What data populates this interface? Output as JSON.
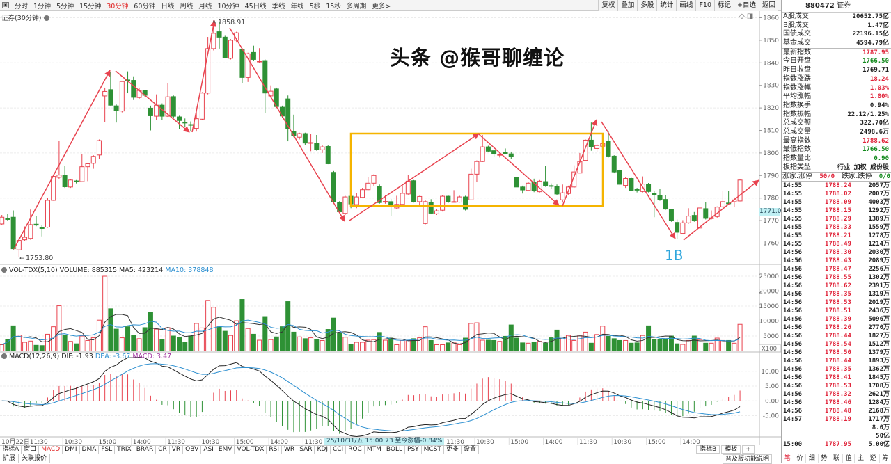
{
  "toolbar": {
    "items": [
      "分时",
      "1分钟",
      "5分钟",
      "15分钟",
      "30分钟",
      "60分钟",
      "日线",
      "周线",
      "月线",
      "10分钟",
      "45日线",
      "季线",
      "年线",
      "5秒",
      "15秒",
      "多周期",
      "更多>"
    ],
    "active": "30分钟",
    "right_buttons": [
      "复权",
      "叠加",
      "多股",
      "统计",
      "画线",
      "F10",
      "标记",
      "+自选",
      "返回"
    ]
  },
  "chart": {
    "title": "证券(30分钟)",
    "price_ticks": [
      1860,
      1850,
      1840,
      1830,
      1820,
      1810,
      1800,
      1790,
      1780,
      1770,
      1760
    ],
    "high_label": "1858.91",
    "low_label": "1753.80",
    "current_price_label": "1771.0",
    "annotation_1b": "1B",
    "colors": {
      "up": "#e8434f",
      "down": "#2e9135",
      "box": "#f5b400",
      "arrow": "#e8434f"
    },
    "candles": [
      [
        1768.5,
        1771.5,
        1772.5,
        1768
      ],
      [
        1771,
        1770.5,
        1773,
        1770
      ],
      [
        1771.5,
        1757.5,
        1774.5,
        1757
      ],
      [
        1757,
        1761.2,
        1762.3,
        1753.8
      ],
      [
        1761.5,
        1762.6,
        1767.4,
        1761
      ],
      [
        1762.1,
        1768.2,
        1774.9,
        1761.5
      ],
      [
        1768.4,
        1768.0,
        1772,
        1767.5
      ],
      [
        1766.8,
        1766.5,
        1768,
        1763
      ],
      [
        1767.1,
        1779,
        1780,
        1766.8
      ],
      [
        1779,
        1789.6,
        1790.5,
        1778.8
      ],
      [
        1789.2,
        1790.2,
        1805.5,
        1788.5
      ],
      [
        1790.2,
        1785,
        1794.4,
        1784.5
      ],
      [
        1784.9,
        1788,
        1788.5,
        1784.5
      ],
      [
        1787.6,
        1787.2,
        1788,
        1786.5
      ],
      [
        1787.3,
        1793.9,
        1799.6,
        1787
      ],
      [
        1793.9,
        1795.2,
        1795.5,
        1787.5
      ],
      [
        1795.4,
        1798.5,
        1799,
        1793
      ],
      [
        1799.1,
        1805.5,
        1806,
        1797.5
      ],
      [
        1825.3,
        1827.3,
        1829,
        1813.7
      ],
      [
        1828.1,
        1821.2,
        1836,
        1821
      ],
      [
        1820.9,
        1818.9,
        1821.5,
        1813.5
      ],
      [
        1818.6,
        1831.7,
        1832,
        1818
      ],
      [
        1832.4,
        1832.0,
        1836.2,
        1826.5
      ],
      [
        1832.2,
        1824.7,
        1834,
        1823.5
      ],
      [
        1824.6,
        1827.7,
        1829,
        1824
      ],
      [
        1827.7,
        1825.6,
        1828,
        1825
      ],
      [
        1819.9,
        1816.5,
        1821,
        1810
      ],
      [
        1816.3,
        1821.2,
        1826,
        1814.5
      ],
      [
        1821.2,
        1816.3,
        1822,
        1814.5
      ],
      [
        1816.3,
        1824.9,
        1831,
        1816
      ],
      [
        1825,
        1816.3,
        1825.5,
        1815.5
      ],
      [
        1816,
        1814.4,
        1816.5,
        1810.5
      ],
      [
        1813.6,
        1813.3,
        1815.3,
        1811.5
      ],
      [
        1812.6,
        1812.4,
        1814,
        1809.5
      ],
      [
        1810.9,
        1815.2,
        1818.5,
        1809.5
      ],
      [
        1815,
        1826.6,
        1827,
        1814.5
      ],
      [
        1826.6,
        1846.3,
        1851.5,
        1826
      ],
      [
        1846.3,
        1853.1,
        1858.9,
        1845.5
      ],
      [
        1853.8,
        1851.4,
        1858,
        1846.3
      ],
      [
        1851.4,
        1842.4,
        1852,
        1842
      ],
      [
        1842,
        1850,
        1850.5,
        1841.5
      ],
      [
        1850,
        1853.3,
        1853.8,
        1849
      ],
      [
        1845.8,
        1833.5,
        1846.5,
        1831
      ],
      [
        1833.5,
        1844,
        1844.5,
        1831.5
      ],
      [
        1844.6,
        1841.5,
        1847.6,
        1841
      ],
      [
        1840.5,
        1840.7,
        1846.5,
        1840
      ],
      [
        1841,
        1826.6,
        1841.5,
        1817.8
      ],
      [
        1825.3,
        1827.4,
        1830,
        1824.5
      ],
      [
        1828.4,
        1820.6,
        1829,
        1820
      ],
      [
        1820.3,
        1816.4,
        1821,
        1815.5
      ],
      [
        1824,
        1810.9,
        1825.5,
        1805.2
      ],
      [
        1809.6,
        1807.8,
        1817,
        1807
      ],
      [
        1807,
        1808.6,
        1809,
        1806
      ],
      [
        1808.6,
        1804.4,
        1809,
        1803.5
      ],
      [
        1804.4,
        1804.6,
        1808.6,
        1800.8
      ],
      [
        1804.4,
        1801.6,
        1808,
        1801
      ],
      [
        1801.4,
        1802.7,
        1803.5,
        1800
      ],
      [
        1802.9,
        1795.2,
        1803.5,
        1795
      ],
      [
        1791.4,
        1778.4,
        1792,
        1778
      ],
      [
        1778,
        1773.9,
        1778.6,
        1773.5
      ],
      [
        1773.2,
        1780.5,
        1781,
        1772.5
      ],
      [
        1780.8,
        1777.4,
        1781.5,
        1775.5
      ],
      [
        1777.1,
        1780.5,
        1782.3,
        1775.5
      ],
      [
        1780.3,
        1783.7,
        1784.5,
        1780
      ],
      [
        1783.7,
        1786.6,
        1789.4,
        1783.5
      ],
      [
        1786.6,
        1790,
        1790.5,
        1785.5
      ],
      [
        1785.2,
        1778,
        1786,
        1777.5
      ],
      [
        1778.3,
        1778.5,
        1781.3,
        1777.5
      ],
      [
        1778.4,
        1776.1,
        1779.6,
        1772.2
      ],
      [
        1775.6,
        1777.2,
        1781,
        1775
      ],
      [
        1777.2,
        1782.1,
        1785.5,
        1776.8
      ],
      [
        1781.8,
        1787.5,
        1790.3,
        1781.5
      ],
      [
        1787.7,
        1778.4,
        1788,
        1778
      ],
      [
        1778.4,
        1780.7,
        1781,
        1776.8
      ],
      [
        1768.7,
        1778.4,
        1779,
        1768.3
      ],
      [
        1778.2,
        1773.3,
        1779.5,
        1772.8
      ],
      [
        1773,
        1774.3,
        1775,
        1772.5
      ],
      [
        1774.6,
        1780.8,
        1781.3,
        1774
      ],
      [
        1780.8,
        1778.4,
        1781.3,
        1777.8
      ],
      [
        1778.2,
        1778.4,
        1783.5,
        1778
      ],
      [
        1778.2,
        1780.5,
        1781,
        1778
      ],
      [
        1780.5,
        1775,
        1781,
        1774.5
      ],
      [
        1779.2,
        1790.6,
        1793,
        1779
      ],
      [
        1790.6,
        1796.2,
        1796.7,
        1787
      ],
      [
        1796.2,
        1802.7,
        1808,
        1796
      ],
      [
        1802.7,
        1800.8,
        1803.2,
        1800.3
      ],
      [
        1801,
        1799.5,
        1801.5,
        1798.5
      ],
      [
        1799.1,
        1799.3,
        1800.5,
        1798
      ],
      [
        1800.3,
        1799.8,
        1802,
        1799.5
      ],
      [
        1799.6,
        1798.3,
        1800.6,
        1797.5
      ],
      [
        1789.2,
        1784.9,
        1790,
        1781.5
      ],
      [
        1784.9,
        1783.6,
        1785.5,
        1782
      ],
      [
        1783.4,
        1786.6,
        1787,
        1783
      ],
      [
        1786.9,
        1783.3,
        1788.6,
        1782.6
      ],
      [
        1782.8,
        1787.5,
        1788,
        1782.5
      ],
      [
        1787.3,
        1785.6,
        1794.3,
        1785
      ],
      [
        1785.5,
        1785.2,
        1786.5,
        1784
      ],
      [
        1785.2,
        1781.8,
        1786,
        1781.3
      ],
      [
        1779.2,
        1782.3,
        1786,
        1778
      ],
      [
        1782,
        1784.9,
        1785.5,
        1781.5
      ],
      [
        1784.9,
        1791.6,
        1794.5,
        1784.5
      ],
      [
        1791.1,
        1796.2,
        1800,
        1791
      ],
      [
        1796.7,
        1805.7,
        1806,
        1796.5
      ],
      [
        1805.7,
        1802.7,
        1813.5,
        1801
      ],
      [
        1802,
        1803.3,
        1804,
        1800.5
      ],
      [
        1803,
        1804.1,
        1804.5,
        1802.5
      ],
      [
        1805.2,
        1798.6,
        1809.5,
        1798
      ],
      [
        1798.6,
        1791.6,
        1799,
        1791
      ],
      [
        1792.4,
        1786.1,
        1793,
        1785.5
      ],
      [
        1785.6,
        1788.7,
        1789.2,
        1784.5
      ],
      [
        1788.7,
        1783.3,
        1789,
        1783
      ],
      [
        1783.8,
        1783.6,
        1784.5,
        1782.5
      ],
      [
        1782.9,
        1786.2,
        1789.6,
        1782.5
      ],
      [
        1786.2,
        1782.9,
        1786.7,
        1782.5
      ],
      [
        1782.1,
        1781.3,
        1783,
        1771.5
      ],
      [
        1781,
        1779.4,
        1784,
        1778.8
      ],
      [
        1779.4,
        1775.1,
        1781.3,
        1774.8
      ],
      [
        1774.9,
        1769.9,
        1775.2,
        1769.5
      ],
      [
        1769.2,
        1764.8,
        1770.5,
        1762
      ],
      [
        1764.3,
        1769,
        1770.2,
        1764
      ],
      [
        1769,
        1772,
        1775.5,
        1768.6
      ],
      [
        1772.3,
        1770,
        1773.8,
        1769.5
      ],
      [
        1766.7,
        1775.6,
        1776,
        1766.3
      ],
      [
        1775.3,
        1771,
        1778.3,
        1770.5
      ],
      [
        1771,
        1771.2,
        1774.5,
        1770.5
      ],
      [
        1771.8,
        1776,
        1776.3,
        1771.3
      ],
      [
        1776.1,
        1778.4,
        1783,
        1775.8
      ],
      [
        1777.8,
        1777.6,
        1783,
        1777
      ],
      [
        1778.4,
        1779.2,
        1780.3,
        1776
      ],
      [
        1778.7,
        1788,
        1788.3,
        1778.5
      ]
    ]
  },
  "volume": {
    "header": {
      "name": "VOL-TDX(5,10)",
      "volume": "VOLUME: 885315",
      "ma5": "MA5: 423214",
      "ma10": "MA10: 378848"
    },
    "ticks": [
      25000,
      20000,
      15000,
      10000,
      5000
    ],
    "unit": "X100",
    "values": [
      2100,
      3900,
      8400,
      5300,
      2900,
      3300,
      1900,
      1800,
      5600,
      8100,
      15100,
      5300,
      3200,
      2400,
      5000,
      3500,
      4400,
      10300,
      25000,
      14100,
      7300,
      4400,
      8100,
      5300,
      4100,
      7800,
      12800,
      7300,
      3800,
      7800,
      5000,
      4600,
      2900,
      5000,
      9200,
      7700,
      16900,
      14600,
      8100,
      6600,
      5200,
      10100,
      17200,
      7500,
      5600,
      3600,
      11500,
      3800,
      4700,
      8100,
      16500,
      6300,
      4700,
      4100,
      4400,
      3900,
      3500,
      7200,
      11000,
      6000,
      4600,
      2200,
      2900,
      2900,
      3600,
      3800,
      6200,
      3600,
      4300,
      2100,
      3500,
      3500,
      4100,
      4400,
      8100,
      3500,
      2100,
      2100,
      2700,
      2700,
      2100,
      4300,
      9200,
      9400,
      3600,
      3600,
      3500,
      3200,
      4900,
      8700,
      4300,
      2700,
      2600,
      3000,
      3200,
      2600,
      4400,
      7000,
      4300,
      5200,
      3500,
      5300,
      6300,
      2600,
      5500,
      8300,
      4900,
      4100,
      3500,
      3500,
      2600,
      2700,
      5200,
      8400,
      3800,
      3800,
      3800,
      5000,
      2400,
      2200,
      3500,
      5000,
      3800,
      2600,
      2600,
      4300,
      3500,
      3500,
      2600,
      8900
    ]
  },
  "macd": {
    "header": {
      "name": "MACD(12,26,9)",
      "dif": "DIF: -1.93",
      "dea": "DEA: -3.67",
      "macd": "MACD: 3.47"
    },
    "ticks": [
      "10.00",
      "5.00",
      "0.00",
      "-5.00"
    ]
  },
  "time_axis": {
    "first": "10月22日",
    "labels": [
      "11:30",
      "10:30",
      "15:00",
      "14:00",
      "11:30",
      "10:30",
      "15:00",
      "14:00",
      "11:30",
      "11:30",
      "10:30",
      "15:00",
      "14:00",
      "11:30",
      "10:30",
      "15:00",
      "14:00"
    ],
    "tooltip": "25/10/31/五 15:00 73 至今涨幅-0.84%"
  },
  "indicator_tabs": [
    "指标A",
    "窗口",
    "MACD",
    "DMI",
    "DMA",
    "FSL",
    "TRIX",
    "BRAR",
    "CR",
    "VR",
    "OBV",
    "ASI",
    "EMV",
    "VOL-TDX",
    "RSI",
    "WR",
    "SAR",
    "KDJ",
    "CCI",
    "ROC",
    "MTM",
    "BOLL",
    "PSY",
    "MCST",
    "更多",
    "设置"
  ],
  "indicator_active": "MACD",
  "indicator_tabs_b": [
    "指标B",
    "模板",
    "+"
  ],
  "bottom_tabs": [
    "扩展",
    "关联报价"
  ],
  "right_panel": {
    "code": "880472",
    "name": "证券",
    "stats_top": [
      {
        "label": "A股成交",
        "value": "20652.75亿",
        "color": "blk"
      },
      {
        "label": "B股成交",
        "value": "1.47亿",
        "color": "blk"
      },
      {
        "label": "国债成交",
        "value": "22196.15亿",
        "color": "blk"
      },
      {
        "label": "基金成交",
        "value": "4594.79亿",
        "color": "blk"
      }
    ],
    "stats": [
      {
        "label": "最新指数",
        "value": "1787.95",
        "color": "red"
      },
      {
        "label": "今日开盘",
        "value": "1766.50",
        "color": "green"
      },
      {
        "label": "昨日收盘",
        "value": "1769.71",
        "color": "blk"
      },
      {
        "label": "指数涨跌",
        "value": "18.24",
        "color": "red"
      },
      {
        "label": "指数涨幅",
        "value": "1.03%",
        "color": "red"
      },
      {
        "label": "平均涨幅",
        "value": "1.00%",
        "color": "red"
      },
      {
        "label": "指数换手",
        "value": "0.94%",
        "color": "blk"
      },
      {
        "label": "指数振幅",
        "value": "22.12/1.25%",
        "color": "blk"
      },
      {
        "label": "总成交额",
        "value": "322.70亿",
        "color": "blk"
      },
      {
        "label": "总成交量",
        "value": "2498.6万",
        "color": "blk"
      },
      {
        "label": "最高指数",
        "value": "1788.62",
        "color": "red"
      },
      {
        "label": "最低指数",
        "value": "1766.50",
        "color": "green"
      },
      {
        "label": "指数量比",
        "value": "0.90",
        "color": "green"
      },
      {
        "label": "板指类型",
        "value": "行业 加权 成份股",
        "color": "blk"
      }
    ],
    "breadth": {
      "up_label": "涨家.涨停",
      "up_value": "50/0",
      "down_label": "跌家.跌停",
      "down_value": "0/0"
    },
    "trades": [
      [
        "14:55",
        "1788.24",
        "2057万"
      ],
      [
        "14:55",
        "1788.02",
        "2007万"
      ],
      [
        "14:55",
        "1788.09",
        "4003万"
      ],
      [
        "14:55",
        "1788.15",
        "1292万"
      ],
      [
        "14:55",
        "1788.29",
        "1389万"
      ],
      [
        "14:55",
        "1788.33",
        "1559万"
      ],
      [
        "14:55",
        "1788.21",
        "1278万"
      ],
      [
        "14:55",
        "1788.49",
        "1214万"
      ],
      [
        "14:56",
        "1788.30",
        "2030万"
      ],
      [
        "14:56",
        "1788.43",
        "2089万"
      ],
      [
        "14:56",
        "1788.47",
        "2256万"
      ],
      [
        "14:56",
        "1788.55",
        "1302万"
      ],
      [
        "14:56",
        "1788.62",
        "2391万"
      ],
      [
        "14:56",
        "1788.35",
        "1319万"
      ],
      [
        "14:56",
        "1788.53",
        "2019万"
      ],
      [
        "14:56",
        "1788.51",
        "2436万"
      ],
      [
        "14:56",
        "1788.39",
        "5096万"
      ],
      [
        "14:56",
        "1788.26",
        "2770万"
      ],
      [
        "14:56",
        "1788.44",
        "1827万"
      ],
      [
        "14:56",
        "1788.54",
        "1512万"
      ],
      [
        "14:56",
        "1788.50",
        "1379万"
      ],
      [
        "14:56",
        "1788.44",
        "1893万"
      ],
      [
        "14:56",
        "1788.35",
        "1362万"
      ],
      [
        "14:56",
        "1788.41",
        "1845万"
      ],
      [
        "14:56",
        "1788.53",
        "1708万"
      ],
      [
        "14:56",
        "1788.32",
        "2621万"
      ],
      [
        "14:56",
        "1788.46",
        "1284万"
      ],
      [
        "14:56",
        "1788.48",
        "2168万"
      ],
      [
        "14:57",
        "1788.19",
        "1717万"
      ],
      [
        "",
        "",
        "8.0万"
      ],
      [
        "",
        "",
        "50亿"
      ],
      [
        "15:00",
        "1787.95",
        "5.00亿"
      ]
    ],
    "help": "普及版功能说明",
    "buttons": [
      "笔",
      "价",
      "细",
      "势",
      "联",
      "值",
      "主",
      "逆",
      "筹"
    ],
    "active_button": "笔"
  },
  "watermark": "头条 @猴哥聊缠论"
}
